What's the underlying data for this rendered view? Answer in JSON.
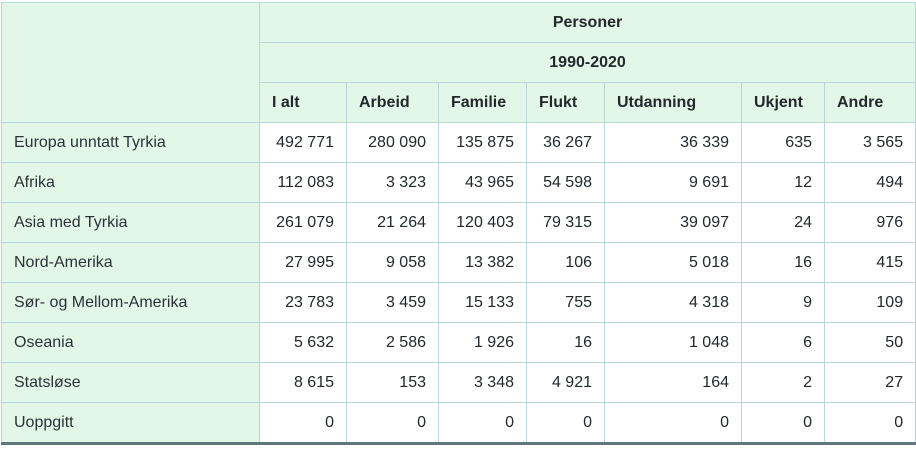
{
  "table": {
    "top_header": "Personer",
    "period_header": "1990-2020",
    "columns": [
      "I alt",
      "Arbeid",
      "Familie",
      "Flukt",
      "Utdanning",
      "Ukjent",
      "Andre"
    ],
    "rows": [
      {
        "label": "Europa unntatt Tyrkia",
        "values": [
          "492 771",
          "280 090",
          "135 875",
          "36 267",
          "36 339",
          "635",
          "3 565"
        ]
      },
      {
        "label": "Afrika",
        "values": [
          "112 083",
          "3 323",
          "43 965",
          "54 598",
          "9 691",
          "12",
          "494"
        ]
      },
      {
        "label": "Asia med Tyrkia",
        "values": [
          "261 079",
          "21 264",
          "120 403",
          "79 315",
          "39 097",
          "24",
          "976"
        ]
      },
      {
        "label": "Nord-Amerika",
        "values": [
          "27 995",
          "9 058",
          "13 382",
          "106",
          "5 018",
          "16",
          "415"
        ]
      },
      {
        "label": "Sør- og Mellom-Amerika",
        "values": [
          "23 783",
          "3 459",
          "15 133",
          "755",
          "4 318",
          "9",
          "109"
        ]
      },
      {
        "label": "Oseania",
        "values": [
          "5 632",
          "2 586",
          "1 926",
          "16",
          "1 048",
          "6",
          "50"
        ]
      },
      {
        "label": "Statsløse",
        "values": [
          "8 615",
          "153",
          "3 348",
          "4 921",
          "164",
          "2",
          "27"
        ]
      },
      {
        "label": "Uoppgitt",
        "values": [
          "0",
          "0",
          "0",
          "0",
          "0",
          "0",
          "0"
        ]
      }
    ],
    "colors": {
      "header_bg": "#e3f7e9",
      "cell_border": "#b7d7d8",
      "bottom_border": "#5e767c",
      "text": "#22282c"
    }
  },
  "chart_data": {
    "type": "table",
    "title": "Personer",
    "subtitle": "1990-2020",
    "columns": [
      "I alt",
      "Arbeid",
      "Familie",
      "Flukt",
      "Utdanning",
      "Ukjent",
      "Andre"
    ],
    "categories": [
      "Europa unntatt Tyrkia",
      "Afrika",
      "Asia med Tyrkia",
      "Nord-Amerika",
      "Sør- og Mellom-Amerika",
      "Oseania",
      "Statsløse",
      "Uoppgitt"
    ],
    "series": [
      {
        "name": "Europa unntatt Tyrkia",
        "values": [
          492771,
          280090,
          135875,
          36267,
          36339,
          635,
          3565
        ]
      },
      {
        "name": "Afrika",
        "values": [
          112083,
          3323,
          43965,
          54598,
          9691,
          12,
          494
        ]
      },
      {
        "name": "Asia med Tyrkia",
        "values": [
          261079,
          21264,
          120403,
          79315,
          39097,
          24,
          976
        ]
      },
      {
        "name": "Nord-Amerika",
        "values": [
          27995,
          9058,
          13382,
          106,
          5018,
          16,
          415
        ]
      },
      {
        "name": "Sør- og Mellom-Amerika",
        "values": [
          23783,
          3459,
          15133,
          755,
          4318,
          9,
          109
        ]
      },
      {
        "name": "Oseania",
        "values": [
          5632,
          2586,
          1926,
          16,
          1048,
          6,
          50
        ]
      },
      {
        "name": "Statsløse",
        "values": [
          8615,
          153,
          3348,
          4921,
          164,
          2,
          27
        ]
      },
      {
        "name": "Uoppgitt",
        "values": [
          0,
          0,
          0,
          0,
          0,
          0,
          0
        ]
      }
    ]
  }
}
